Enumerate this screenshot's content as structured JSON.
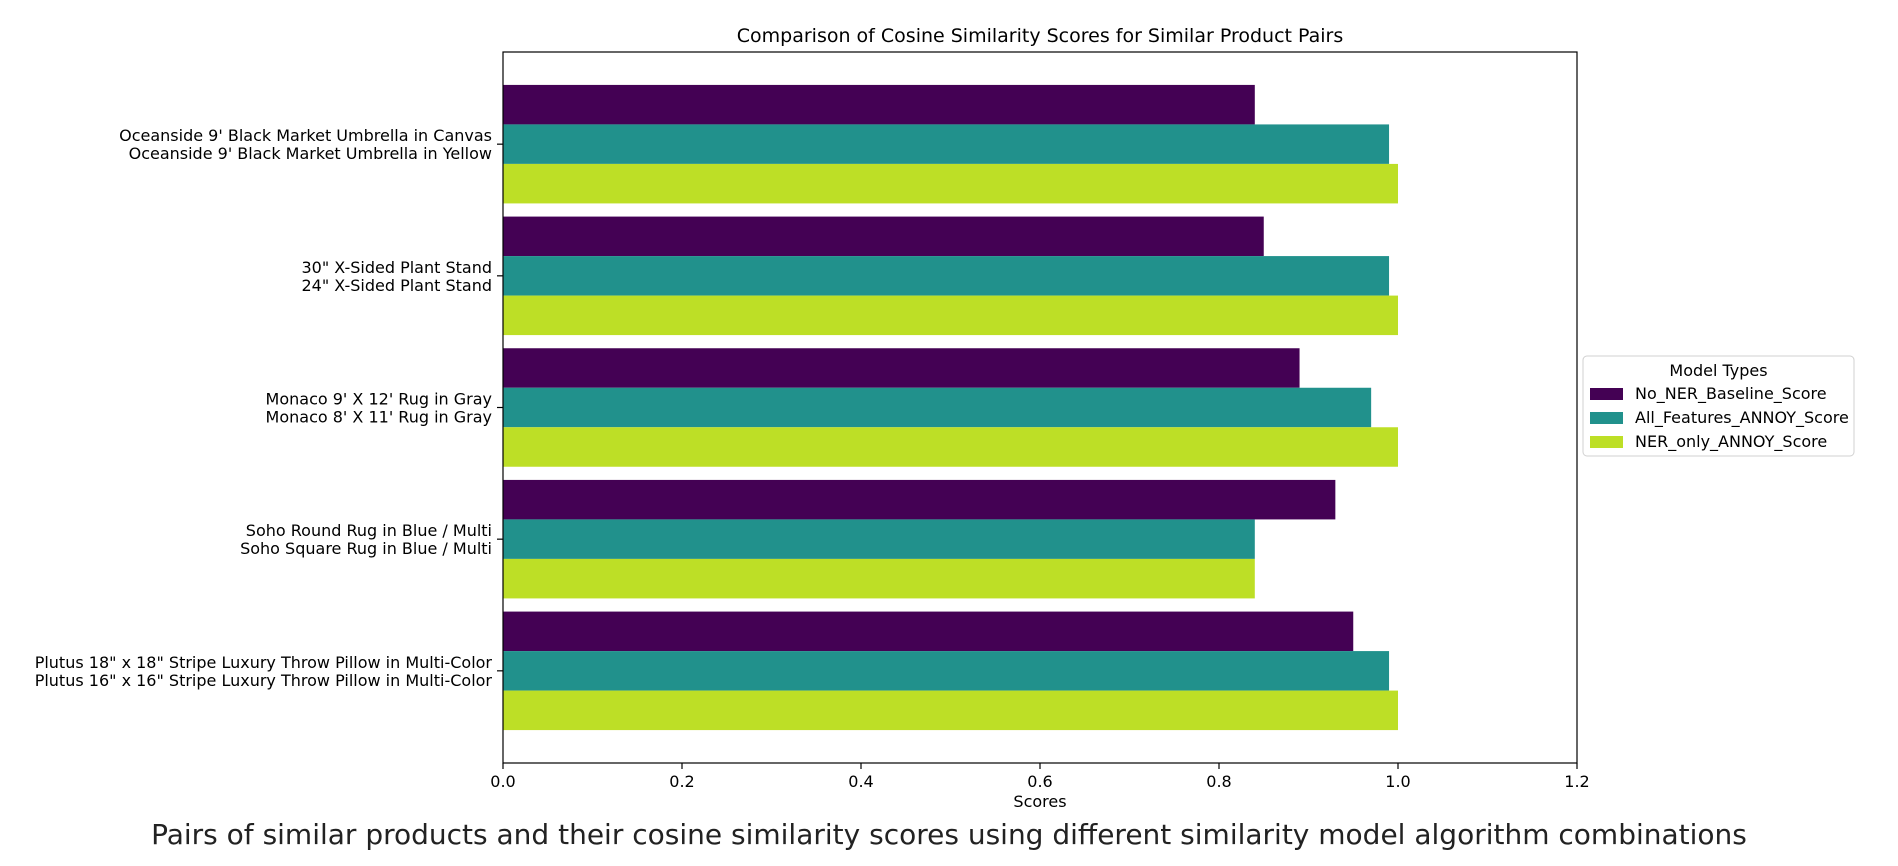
{
  "chart_data": {
    "type": "bar",
    "orientation": "horizontal",
    "title": "Comparison of Cosine Similarity Scores for Similar Product Pairs",
    "xlabel": "Scores",
    "ylabel": "",
    "xlim": [
      0,
      1.2
    ],
    "xticks": [
      "0.0",
      "0.2",
      "0.4",
      "0.6",
      "0.8",
      "1.0",
      "1.2"
    ],
    "categories": [
      [
        "Oceanside 9' Black Market Umbrella in Canvas",
        "Oceanside 9' Black Market Umbrella in Yellow"
      ],
      [
        "30\" X-Sided Plant Stand",
        "24\" X-Sided Plant Stand"
      ],
      [
        "Monaco 9' X 12' Rug in Gray",
        "Monaco 8' X 11' Rug in Gray"
      ],
      [
        "Soho Round Rug in Blue / Multi",
        "Soho Square Rug in Blue / Multi"
      ],
      [
        "Plutus 18\" x 18\" Stripe Luxury Throw Pillow in Multi-Color",
        "Plutus 16\" x 16\" Stripe Luxury Throw Pillow in Multi-Color"
      ]
    ],
    "series": [
      {
        "name": "No_NER_Baseline_Score",
        "color": "#440154",
        "values": [
          0.84,
          0.85,
          0.89,
          0.93,
          0.95
        ]
      },
      {
        "name": "All_Features_ANNOY_Score",
        "color": "#21918c",
        "values": [
          0.99,
          0.99,
          0.97,
          0.84,
          0.99
        ]
      },
      {
        "name": "NER_only_ANNOY_Score",
        "color": "#bddf26",
        "values": [
          1.0,
          1.0,
          1.0,
          0.84,
          1.0
        ]
      }
    ],
    "legend": {
      "title": "Model Types",
      "position": "center-right, outside plot"
    },
    "grid": false
  },
  "caption": "Pairs of similar products and their cosine similarity scores using different similarity model algorithm combinations"
}
